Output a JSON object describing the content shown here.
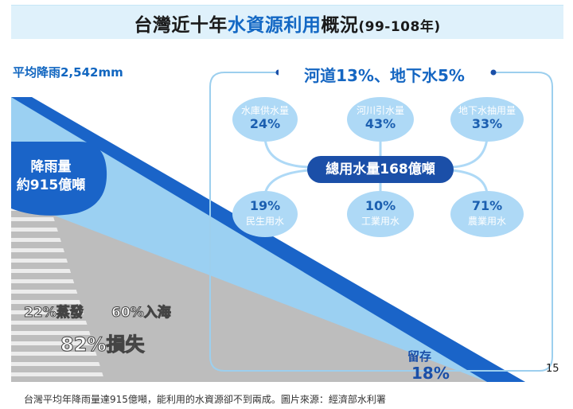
{
  "title": {
    "prefix": "台灣近十年",
    "highlight": "水資源利用",
    "suffix": "概況",
    "years": "(99-108年)"
  },
  "rainfall_avg": "平均降雨2,542mm",
  "rainfall_total": {
    "line1": "降雨量",
    "line2": "約915億噸"
  },
  "losses": {
    "evaporation": "22%蒸發",
    "to_sea": "60%入海",
    "total_loss": "82%損失"
  },
  "panel_title": "河道13%、地下水5%",
  "sources": [
    {
      "label": "水庫供水量",
      "pct": "24%"
    },
    {
      "label": "河川引水量",
      "pct": "43%"
    },
    {
      "label": "地下水抽用量",
      "pct": "33%"
    }
  ],
  "total_usage": "總用水量168億噸",
  "uses": [
    {
      "pct": "19%",
      "label": "民生用水"
    },
    {
      "pct": "10%",
      "label": "工業用水"
    },
    {
      "pct": "71%",
      "label": "農業用水"
    }
  ],
  "storage": {
    "label": "留存",
    "pct": "18%"
  },
  "page_number": "15",
  "caption": "台灣平均年降雨量達915億噸，能利用的水資源卻不到兩成。圖片來源：經濟部水利署",
  "colors": {
    "title_bg": "#dff1fb",
    "accent_blue": "#1368c4",
    "dark_blue": "#1b4fa8",
    "light_blue": "#aed9f6",
    "grey": "#bdbdbd"
  }
}
